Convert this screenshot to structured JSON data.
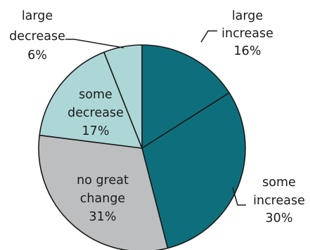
{
  "chart_data": {
    "type": "pie",
    "title": "",
    "direction": "clockwise from top",
    "slices": [
      {
        "label_lines": [
          "large",
          "increase"
        ],
        "pct_label": "16%",
        "value": 16,
        "color": "#0e6f7c"
      },
      {
        "label_lines": [
          "some",
          "increase"
        ],
        "pct_label": "30%",
        "value": 30,
        "color": "#0e6f7c"
      },
      {
        "label_lines": [
          "no great",
          "change"
        ],
        "pct_label": "31%",
        "value": 31,
        "color": "#bdbec0"
      },
      {
        "label_lines": [
          "some",
          "decrease"
        ],
        "pct_label": "17%",
        "value": 17,
        "color": "#add7d7"
      },
      {
        "label_lines": [
          "large",
          "decrease"
        ],
        "pct_label": "6%",
        "value": 6,
        "color": "#add7d7"
      }
    ]
  }
}
